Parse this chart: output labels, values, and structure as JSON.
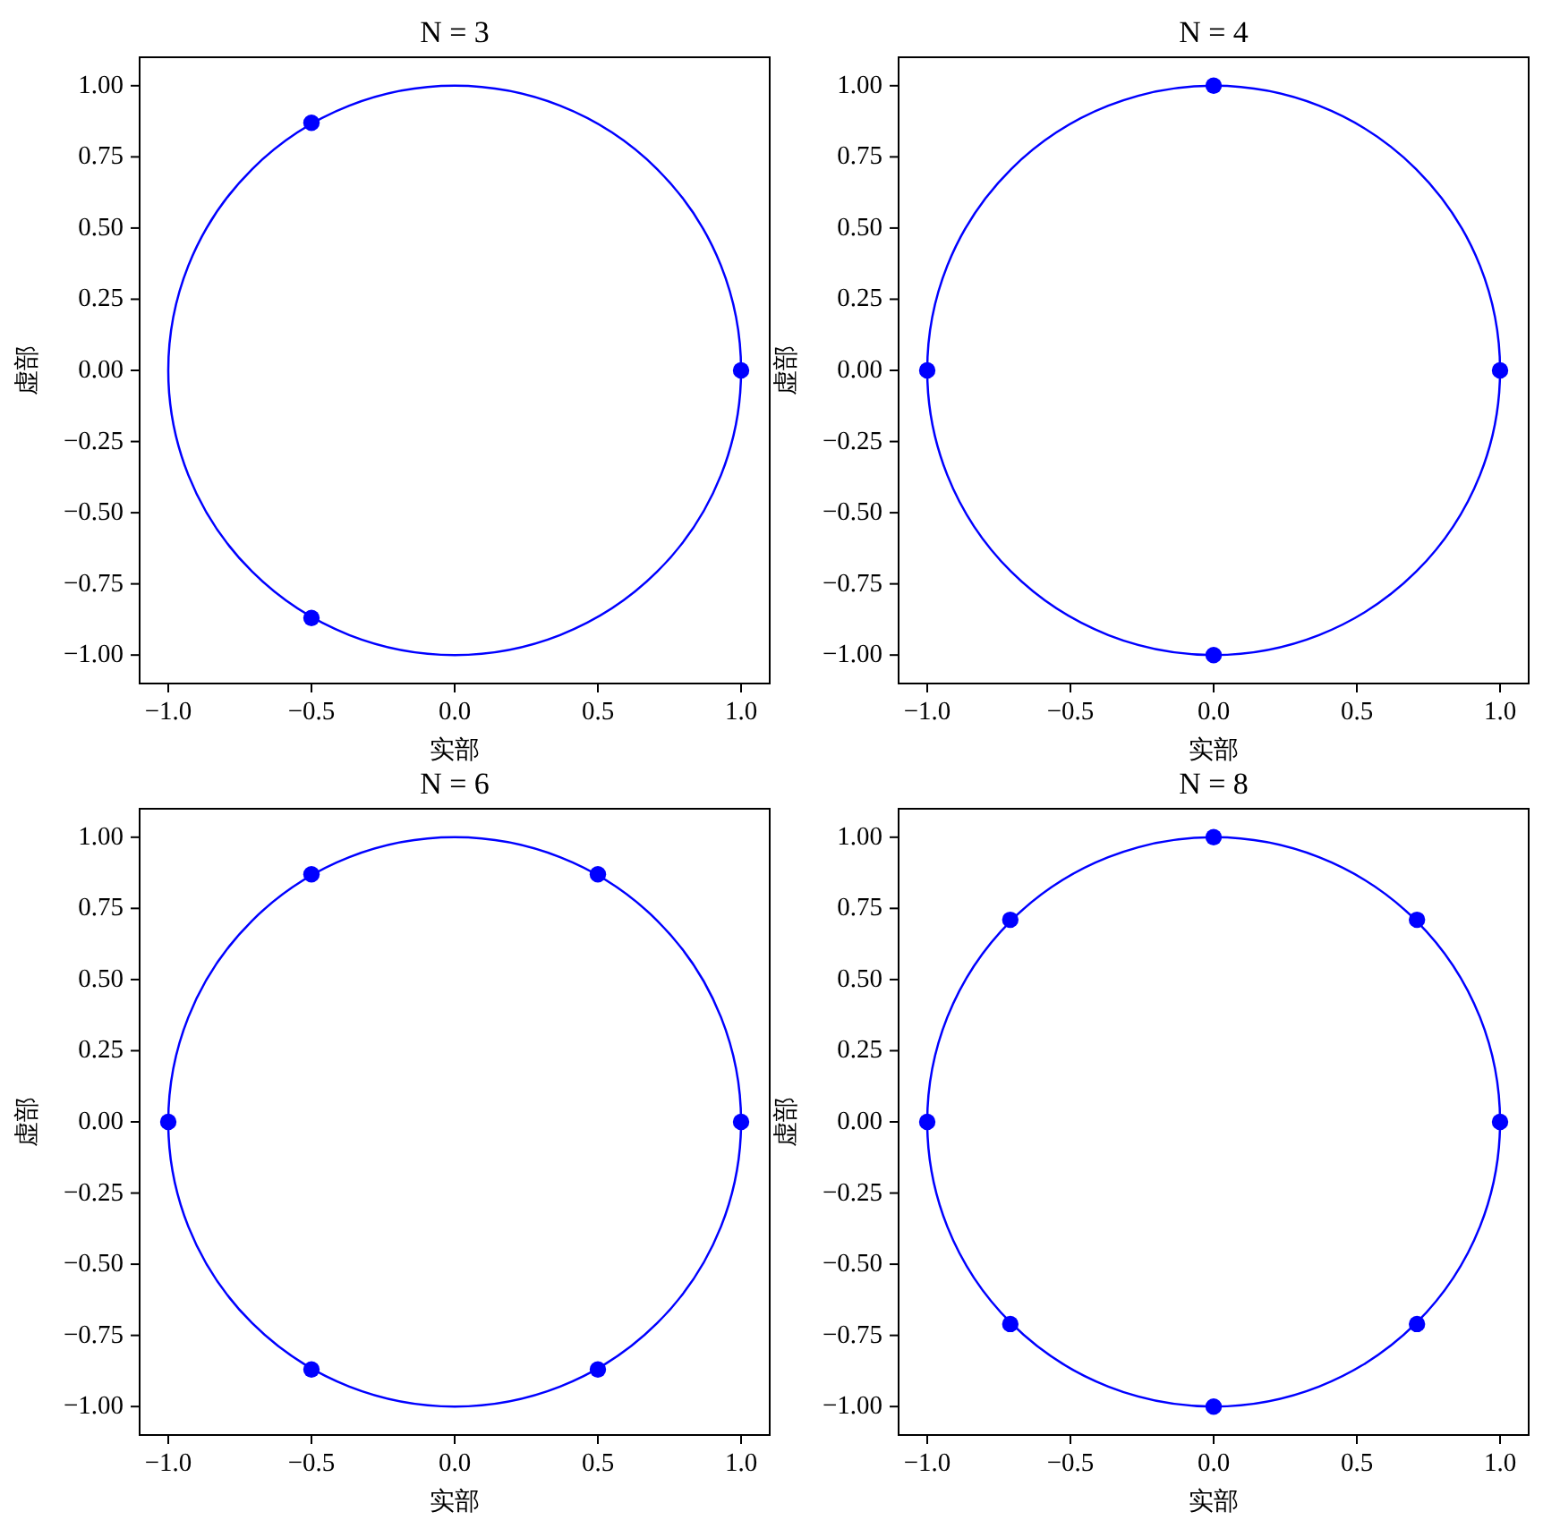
{
  "chart_data": [
    {
      "type": "scatter",
      "title": "N = 3",
      "xlabel": "实部",
      "ylabel": "虚部",
      "marker": "circle",
      "xlim": [
        -1.1,
        1.1
      ],
      "ylim": [
        -1.1,
        1.1
      ],
      "xticks": [
        {
          "value": -1,
          "label": "−1.0"
        },
        {
          "value": -0.5,
          "label": "−0.5"
        },
        {
          "value": 0,
          "label": "0.0"
        },
        {
          "value": 0.5,
          "label": "0.5"
        },
        {
          "value": 1,
          "label": "1.0"
        }
      ],
      "yticks": [
        {
          "value": -1,
          "label": "−1.00"
        },
        {
          "value": -0.75,
          "label": "−0.75"
        },
        {
          "value": -0.5,
          "label": "−0.50"
        },
        {
          "value": -0.25,
          "label": "−0.25"
        },
        {
          "value": 0,
          "label": "0.00"
        },
        {
          "value": 0.25,
          "label": "0.25"
        },
        {
          "value": 0.5,
          "label": "0.50"
        },
        {
          "value": 0.75,
          "label": "0.75"
        },
        {
          "value": 1,
          "label": "1.00"
        }
      ],
      "series": [
        {
          "type": "scatter",
          "color": "#0000ff",
          "x": [
            1,
            -0.5,
            -0.5
          ],
          "values": [
            0,
            0.87,
            -0.87
          ]
        }
      ]
    },
    {
      "type": "scatter",
      "title": "N = 4",
      "xlabel": "实部",
      "ylabel": "虚部",
      "marker": "circle",
      "xlim": [
        -1.1,
        1.1
      ],
      "ylim": [
        -1.1,
        1.1
      ],
      "xticks": [
        {
          "value": -1,
          "label": "−1.0"
        },
        {
          "value": -0.5,
          "label": "−0.5"
        },
        {
          "value": 0,
          "label": "0.0"
        },
        {
          "value": 0.5,
          "label": "0.5"
        },
        {
          "value": 1,
          "label": "1.0"
        }
      ],
      "yticks": [
        {
          "value": -1,
          "label": "−1.00"
        },
        {
          "value": -0.75,
          "label": "−0.75"
        },
        {
          "value": -0.5,
          "label": "−0.50"
        },
        {
          "value": -0.25,
          "label": "−0.25"
        },
        {
          "value": 0,
          "label": "0.00"
        },
        {
          "value": 0.25,
          "label": "0.25"
        },
        {
          "value": 0.5,
          "label": "0.50"
        },
        {
          "value": 0.75,
          "label": "0.75"
        },
        {
          "value": 1,
          "label": "1.00"
        }
      ],
      "series": [
        {
          "type": "scatter",
          "color": "#0000ff",
          "x": [
            1,
            0,
            -1,
            0
          ],
          "values": [
            0,
            1,
            0,
            -1
          ]
        }
      ]
    },
    {
      "type": "scatter",
      "title": "N = 6",
      "xlabel": "实部",
      "ylabel": "虚部",
      "marker": "circle",
      "xlim": [
        -1.1,
        1.1
      ],
      "ylim": [
        -1.1,
        1.1
      ],
      "xticks": [
        {
          "value": -1,
          "label": "−1.0"
        },
        {
          "value": -0.5,
          "label": "−0.5"
        },
        {
          "value": 0,
          "label": "0.0"
        },
        {
          "value": 0.5,
          "label": "0.5"
        },
        {
          "value": 1,
          "label": "1.0"
        }
      ],
      "yticks": [
        {
          "value": -1,
          "label": "−1.00"
        },
        {
          "value": -0.75,
          "label": "−0.75"
        },
        {
          "value": -0.5,
          "label": "−0.50"
        },
        {
          "value": -0.25,
          "label": "−0.25"
        },
        {
          "value": 0,
          "label": "0.00"
        },
        {
          "value": 0.25,
          "label": "0.25"
        },
        {
          "value": 0.5,
          "label": "0.50"
        },
        {
          "value": 0.75,
          "label": "0.75"
        },
        {
          "value": 1,
          "label": "1.00"
        }
      ],
      "series": [
        {
          "type": "scatter",
          "color": "#0000ff",
          "x": [
            1,
            0.5,
            -0.5,
            -1,
            -0.5,
            0.5
          ],
          "values": [
            0,
            0.87,
            0.87,
            0,
            -0.87,
            -0.87
          ]
        }
      ]
    },
    {
      "type": "scatter",
      "title": "N = 8",
      "xlabel": "实部",
      "ylabel": "虚部",
      "marker": "circle",
      "xlim": [
        -1.1,
        1.1
      ],
      "ylim": [
        -1.1,
        1.1
      ],
      "xticks": [
        {
          "value": -1,
          "label": "−1.0"
        },
        {
          "value": -0.5,
          "label": "−0.5"
        },
        {
          "value": 0,
          "label": "0.0"
        },
        {
          "value": 0.5,
          "label": "0.5"
        },
        {
          "value": 1,
          "label": "1.0"
        }
      ],
      "yticks": [
        {
          "value": -1,
          "label": "−1.00"
        },
        {
          "value": -0.75,
          "label": "−0.75"
        },
        {
          "value": -0.5,
          "label": "−0.50"
        },
        {
          "value": -0.25,
          "label": "−0.25"
        },
        {
          "value": 0,
          "label": "0.00"
        },
        {
          "value": 0.25,
          "label": "0.25"
        },
        {
          "value": 0.5,
          "label": "0.50"
        },
        {
          "value": 0.75,
          "label": "0.75"
        },
        {
          "value": 1,
          "label": "1.00"
        }
      ],
      "series": [
        {
          "type": "scatter",
          "color": "#0000ff",
          "x": [
            1,
            0.71,
            0,
            -0.71,
            -1,
            -0.71,
            0,
            0.71
          ],
          "values": [
            0,
            0.71,
            1,
            0.71,
            0,
            -0.71,
            -1,
            -0.71
          ]
        }
      ]
    }
  ]
}
